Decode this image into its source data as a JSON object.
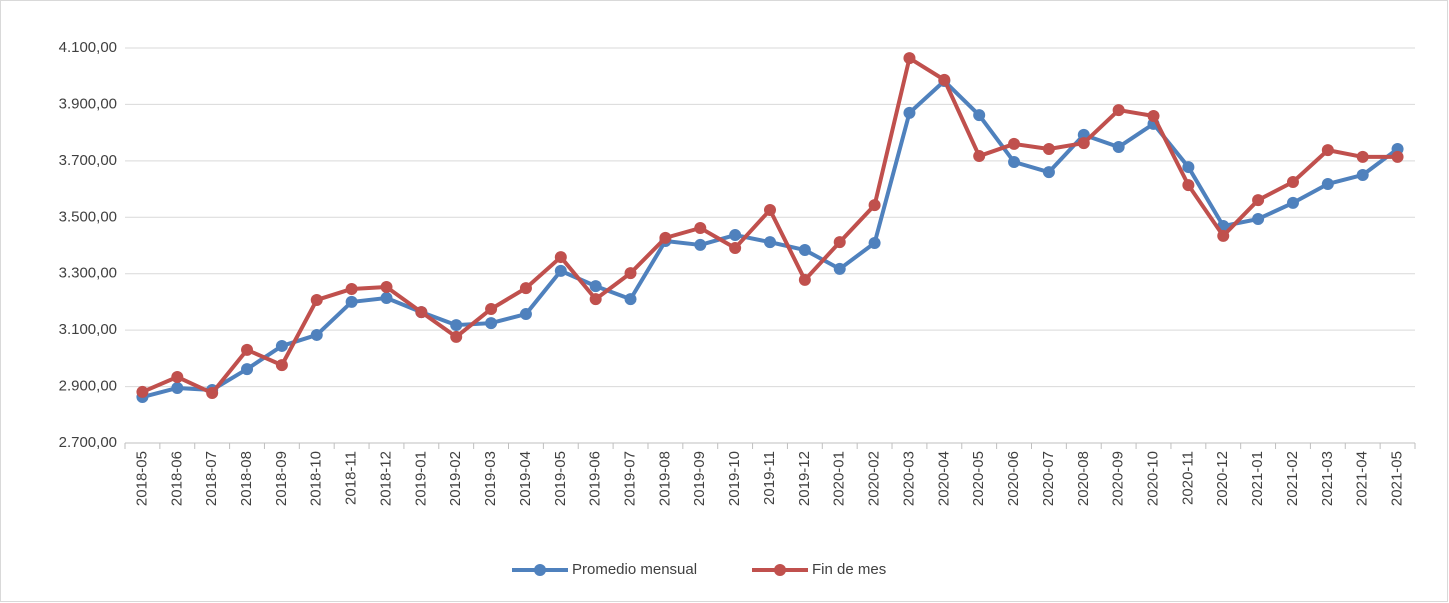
{
  "chart_data": {
    "type": "line",
    "categories": [
      "2018-05",
      "2018-06",
      "2018-07",
      "2018-08",
      "2018-09",
      "2018-10",
      "2018-11",
      "2018-12",
      "2019-01",
      "2019-02",
      "2019-03",
      "2019-04",
      "2019-05",
      "2019-06",
      "2019-07",
      "2019-08",
      "2019-09",
      "2019-10",
      "2019-11",
      "2019-12",
      "2020-01",
      "2020-02",
      "2020-03",
      "2020-04",
      "2020-05",
      "2020-06",
      "2020-07",
      "2020-08",
      "2020-09",
      "2020-10",
      "2020-11",
      "2020-12",
      "2021-01",
      "2021-02",
      "2021-03",
      "2021-04",
      "2021-05"
    ],
    "series": [
      {
        "name": "Promedio mensual",
        "color": "#4f81bd",
        "values": [
          2863,
          2895,
          2888,
          2962,
          3044,
          3083,
          3200,
          3214,
          3164,
          3118,
          3125,
          3157,
          3310,
          3256,
          3210,
          3416,
          3402,
          3437,
          3412,
          3384,
          3317,
          3409,
          3870,
          3983,
          3862,
          3696,
          3660,
          3792,
          3749,
          3831,
          3678,
          3469,
          3494,
          3551,
          3618,
          3650,
          3742
        ]
      },
      {
        "name": "Fin de mes",
        "color": "#c0504d",
        "values": [
          2881,
          2934,
          2877,
          3030,
          2976,
          3207,
          3246,
          3253,
          3164,
          3076,
          3175,
          3249,
          3359,
          3210,
          3302,
          3427,
          3462,
          3391,
          3526,
          3278,
          3412,
          3543,
          4064,
          3987,
          3717,
          3760,
          3742,
          3763,
          3880,
          3859,
          3614,
          3434,
          3561,
          3625,
          3738,
          3714,
          3714
        ]
      }
    ],
    "ylim": [
      2700,
      4100
    ],
    "yticks": [
      {
        "value": 2700,
        "label": "2.700,00"
      },
      {
        "value": 2900,
        "label": "2.900,00"
      },
      {
        "value": 3100,
        "label": "3.100,00"
      },
      {
        "value": 3300,
        "label": "3.300,00"
      },
      {
        "value": 3500,
        "label": "3.500,00"
      },
      {
        "value": 3700,
        "label": "3.700,00"
      },
      {
        "value": 3900,
        "label": "3.900,00"
      },
      {
        "value": 4100,
        "label": "4.100,00"
      }
    ],
    "grid": true,
    "legend": "bottom"
  }
}
